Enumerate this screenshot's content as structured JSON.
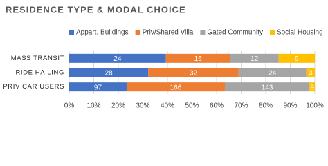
{
  "chart_data": {
    "type": "bar",
    "orientation": "horizontal",
    "stacked": "percent",
    "title": "RESIDENCE TYPE & MODAL CHOICE",
    "categories": [
      "MASS TRANSIT",
      "RIDE HAILING",
      "PRIV CAR USERS"
    ],
    "series": [
      {
        "name": "Appart. Buildings",
        "color": "#4472c4",
        "values": [
          24,
          28,
          97
        ]
      },
      {
        "name": "Priv/Shared Villa",
        "color": "#ed7d31",
        "values": [
          16,
          32,
          166
        ]
      },
      {
        "name": "Gated Community",
        "color": "#a5a5a5",
        "values": [
          12,
          24,
          143
        ]
      },
      {
        "name": "Social Housing",
        "color": "#ffc000",
        "values": [
          9,
          3,
          9
        ]
      }
    ],
    "xlim": [
      0,
      100
    ],
    "xticks": [
      {
        "value": 0,
        "label": "0%"
      },
      {
        "value": 10,
        "label": "10%"
      },
      {
        "value": 20,
        "label": "20%"
      },
      {
        "value": 30,
        "label": "30%"
      },
      {
        "value": 40,
        "label": "40%"
      },
      {
        "value": 50,
        "label": "50%"
      },
      {
        "value": 60,
        "label": "60%"
      },
      {
        "value": 70,
        "label": "70%"
      },
      {
        "value": 80,
        "label": "80%"
      },
      {
        "value": 90,
        "label": "90%"
      },
      {
        "value": 100,
        "label": "100%"
      }
    ],
    "grid": true,
    "legend": "top"
  }
}
